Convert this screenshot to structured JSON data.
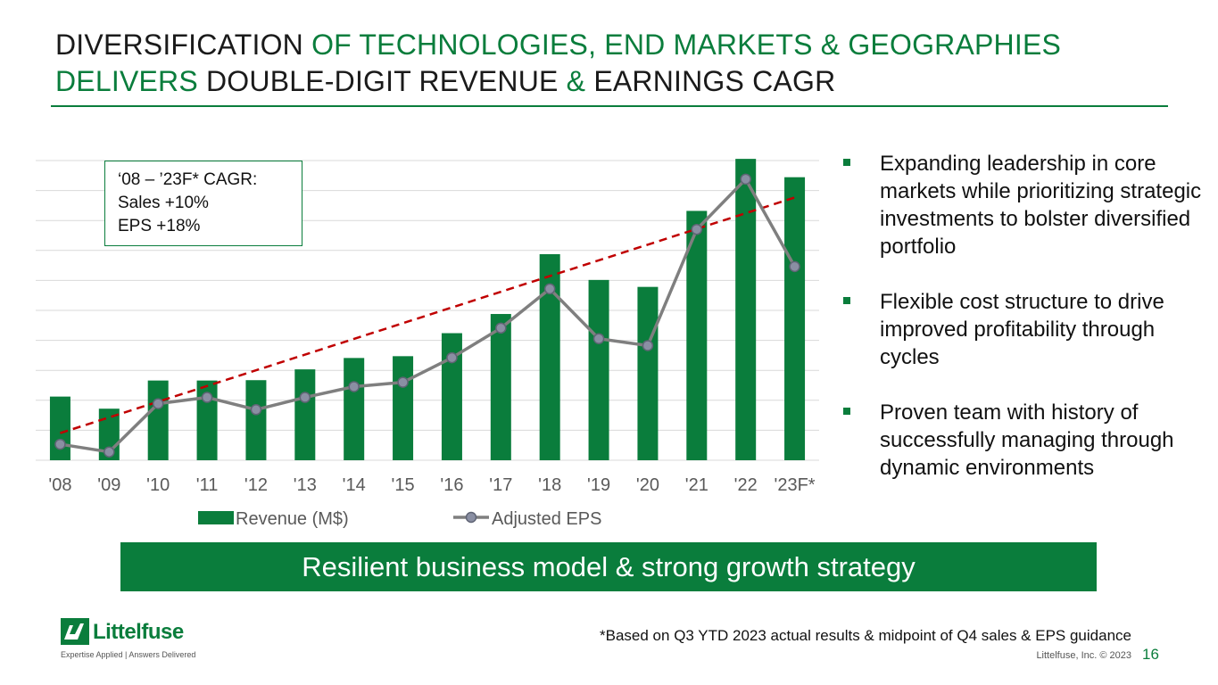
{
  "title": {
    "part1": "DIVERSIFICATION ",
    "part2": "OF TECHNOLOGIES, END MARKETS & GEOGRAPHIES",
    "part3": "DELIVERS ",
    "part4": "DOUBLE-DIGIT REVENUE ",
    "part5": "& ",
    "part6": "EARNINGS CAGR"
  },
  "cagr_box": {
    "line1": "‘08 – ’23F* CAGR:",
    "line2": "Sales +10%",
    "line3": "EPS +18%"
  },
  "bullets": [
    "Expanding leadership in core markets while prioritizing strategic investments to bolster diversified portfolio",
    "Flexible cost structure to drive improved profitability through cycles",
    "Proven team with history of successfully managing through dynamic environments"
  ],
  "banner": "Resilient business model & strong growth strategy",
  "footnote": "*Based on Q3 YTD 2023 actual results & midpoint of Q4 sales & EPS guidance",
  "copyright": "Littelfuse, Inc. © 2023",
  "page_number": "16",
  "logo": {
    "word": "Littelfuse",
    "tagline": "Expertise Applied | Answers Delivered"
  },
  "colors": {
    "green": "#0a7d3c",
    "eps_line": "#7f7f7f",
    "trend": "#c00000",
    "grid": "#d9d9d9"
  },
  "chart_data": {
    "type": "bar",
    "categories": [
      "'08",
      "'09",
      "'10",
      "'11",
      "'12",
      "'13",
      "'14",
      "'15",
      "'16",
      "'17",
      "'18",
      "'19",
      "'20",
      "'21",
      "'22",
      "'23F*"
    ],
    "series": [
      {
        "name": "Revenue (M$)",
        "type": "bar",
        "values": [
          531,
          430,
          665,
          665,
          668,
          758,
          853,
          868,
          1060,
          1220,
          1719,
          1504,
          1446,
          2080,
          2514,
          2361
        ]
      },
      {
        "name": "Adjusted EPS",
        "type": "line",
        "values": [
          1.04,
          0.54,
          3.68,
          4.09,
          3.29,
          4.09,
          4.79,
          5.07,
          6.67,
          8.6,
          11.15,
          7.91,
          7.46,
          15.02,
          18.29,
          12.6
        ]
      }
    ],
    "trendline": {
      "series": "Revenue (M$)",
      "style": "dashed"
    },
    "legend": [
      "Revenue (M$)",
      "Adjusted EPS"
    ],
    "legend_position": "bottom",
    "gridlines": true,
    "y_axis_labels_visible": false,
    "revenue_ylim": [
      0,
      2500
    ],
    "eps_ylim": [
      0,
      19.5
    ]
  }
}
